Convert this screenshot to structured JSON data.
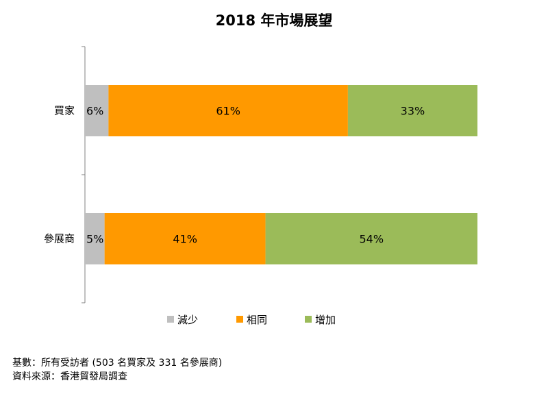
{
  "chart_data": {
    "type": "bar",
    "orientation": "horizontal",
    "stacked": "percent",
    "title": "2018 年市場展望",
    "categories": [
      "買家",
      "參展商"
    ],
    "series": [
      {
        "name": "減少",
        "color": "#bfbfbf",
        "values": [
          6,
          5
        ],
        "labels": [
          "6%",
          "5%"
        ]
      },
      {
        "name": "相同",
        "color": "#ff9900",
        "values": [
          61,
          41
        ],
        "labels": [
          "61%",
          "41%"
        ]
      },
      {
        "name": "增加",
        "color": "#9bbb59",
        "values": [
          33,
          54
        ],
        "labels": [
          "33%",
          "54%"
        ]
      }
    ],
    "xlim": [
      0,
      100
    ],
    "grid": false,
    "legend": "bottom"
  },
  "footnotes": {
    "base": "基數：所有受訪者 (503 名買家及 331 名參展商)",
    "source": "資料來源：香港貿發局調查"
  }
}
